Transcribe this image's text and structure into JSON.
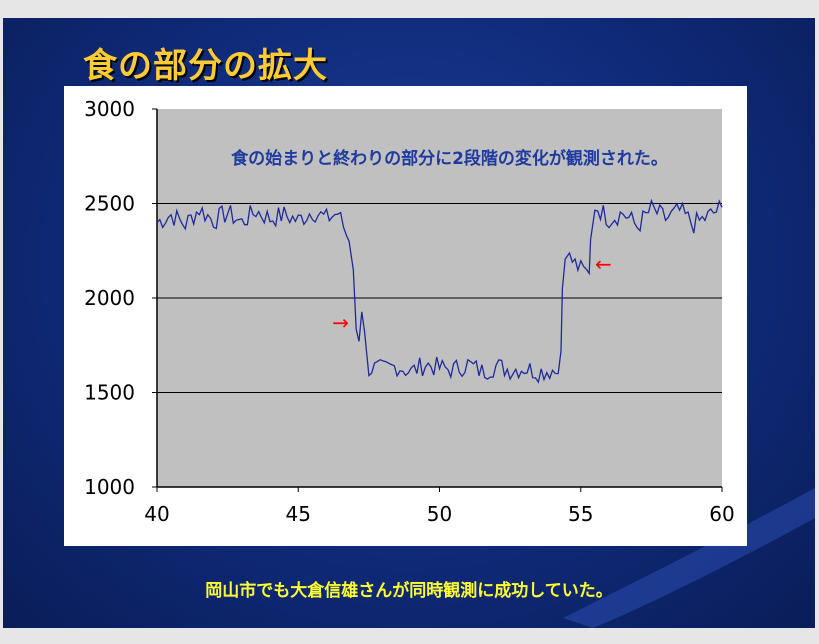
{
  "slide": {
    "title": "食の部分の拡大",
    "caption": "岡山市でも大倉信雄さんが同時観測に成功していた。",
    "colors": {
      "title": "#ffcc33",
      "caption": "#ffff33",
      "background": "#12307f",
      "plot_bg": "#c0c0c0",
      "series": "#1f2a9a",
      "arrow": "#ff0000",
      "annotation": "#1f3aa0"
    }
  },
  "chart_data": {
    "type": "line",
    "title": "",
    "xlabel": "",
    "ylabel": "",
    "xlim": [
      40,
      60
    ],
    "ylim": [
      1000,
      3000
    ],
    "x_ticks": [
      "40",
      "45",
      "50",
      "55",
      "60"
    ],
    "y_ticks": [
      "1000",
      "1500",
      "2000",
      "2500",
      "3000"
    ],
    "grid": "horizontal",
    "annotation": "食の始まりと終わりの部分に2段階の変化が観測された。",
    "arrows": [
      {
        "label": "→",
        "x": 46.5,
        "y": 1865,
        "direction": "right"
      },
      {
        "label": "←",
        "x": 55.8,
        "y": 2175,
        "direction": "left"
      }
    ],
    "series": [
      {
        "x": [
          40.0,
          40.5,
          41.0,
          41.5,
          42.0,
          42.5,
          43.0,
          43.5,
          44.0,
          44.5,
          45.0,
          45.5,
          46.0,
          46.4,
          46.6,
          46.8,
          46.95,
          47.05,
          47.15,
          47.25,
          47.35,
          47.5,
          48.0,
          48.5,
          49.0,
          49.5,
          50.0,
          50.5,
          51.0,
          51.5,
          52.0,
          52.5,
          53.0,
          53.5,
          54.0,
          54.2,
          54.3,
          54.35,
          54.45,
          54.6,
          54.8,
          55.0,
          55.3,
          55.35,
          55.5,
          56.0,
          56.5,
          57.0,
          57.5,
          58.0,
          58.5,
          59.0,
          59.5,
          60.0
        ],
        "y": [
          2400,
          2440,
          2390,
          2470,
          2410,
          2450,
          2400,
          2460,
          2420,
          2440,
          2410,
          2460,
          2420,
          2450,
          2380,
          2300,
          2150,
          1860,
          1800,
          1900,
          1820,
          1630,
          1620,
          1640,
          1610,
          1650,
          1630,
          1620,
          1650,
          1610,
          1640,
          1620,
          1630,
          1610,
          1620,
          1600,
          1720,
          2050,
          2260,
          2210,
          2180,
          2150,
          2130,
          2310,
          2490,
          2420,
          2450,
          2380,
          2470,
          2420,
          2460,
          2390,
          2430,
          2480
        ]
      }
    ]
  }
}
